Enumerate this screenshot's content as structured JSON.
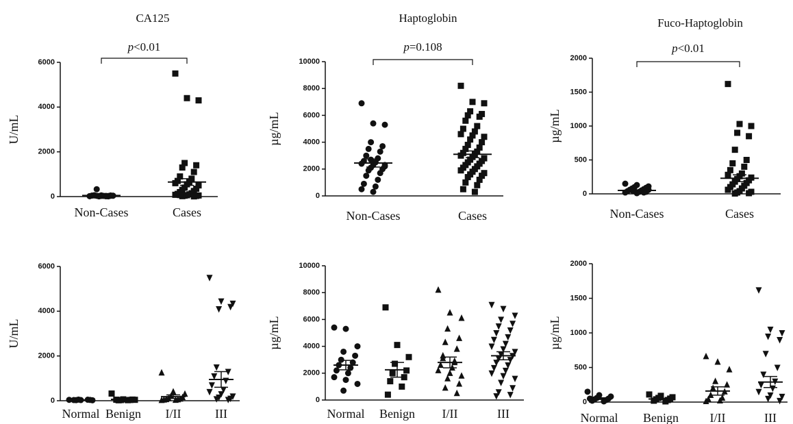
{
  "chart_data": [
    {
      "type": "dotplot",
      "title": "CA125",
      "ylabel": "U/mL",
      "annotation": "p<0.01",
      "ylim": [
        0,
        6000
      ],
      "yticks": [
        0,
        2000,
        4000,
        6000
      ],
      "series": [
        {
          "name": "Non-Cases",
          "marker": "circle",
          "color": "#111",
          "values": [
            20,
            30,
            40,
            10,
            50,
            35,
            25,
            60,
            15,
            45,
            30,
            20,
            55,
            40,
            25,
            35,
            330,
            10,
            50,
            30
          ],
          "mean": 50,
          "sem": 15
        },
        {
          "name": "Cases",
          "marker": "square",
          "color": "#111",
          "values": [
            5500,
            4400,
            4300,
            1500,
            1400,
            1300,
            1100,
            900,
            800,
            700,
            650,
            600,
            550,
            500,
            400,
            350,
            300,
            250,
            200,
            150,
            120,
            100,
            80,
            60,
            50,
            40,
            30,
            20,
            10,
            70
          ],
          "mean": 650,
          "sem": 150
        }
      ]
    },
    {
      "type": "dotplot",
      "title": "Haptoglobin",
      "ylabel": "µg/mL",
      "annotation": "p=0.108",
      "ylim": [
        0,
        10000
      ],
      "yticks": [
        0,
        2000,
        4000,
        6000,
        8000,
        10000
      ],
      "series": [
        {
          "name": "Non-Cases",
          "marker": "circle",
          "color": "#111",
          "values": [
            6900,
            5400,
            5300,
            4000,
            3700,
            3500,
            3300,
            3000,
            2800,
            2600,
            2500,
            2400,
            2300,
            2200,
            2100,
            2000,
            1900,
            1700,
            1500,
            1200,
            900,
            700,
            500,
            300,
            2300,
            2700
          ],
          "mean": 2450,
          "sem": 300
        },
        {
          "name": "Cases",
          "marker": "square",
          "color": "#111",
          "values": [
            8200,
            7000,
            6900,
            6300,
            6100,
            6000,
            5900,
            5600,
            5200,
            5000,
            4800,
            4600,
            4500,
            4400,
            4200,
            4000,
            3800,
            3600,
            3500,
            3300,
            3200,
            3100,
            3000,
            2900,
            2800,
            2700,
            2600,
            2500,
            2400,
            2300,
            2200,
            2100,
            2000,
            1900,
            1800,
            1700,
            1600,
            1500,
            1400,
            1200,
            1000,
            800,
            500,
            300
          ],
          "mean": 3100,
          "sem": 250
        }
      ]
    },
    {
      "type": "dotplot",
      "title": "Fuco-Haptoglobin",
      "ylabel": "µg/mL",
      "annotation": "p<0.01",
      "ylim": [
        0,
        2000
      ],
      "yticks": [
        0,
        500,
        1000,
        1500,
        2000
      ],
      "series": [
        {
          "name": "Non-Cases",
          "marker": "circle",
          "color": "#111",
          "values": [
            150,
            130,
            110,
            100,
            90,
            80,
            70,
            60,
            50,
            40,
            30,
            20,
            10,
            60,
            40,
            30,
            50,
            20
          ],
          "mean": 50,
          "sem": 8
        },
        {
          "name": "Cases",
          "marker": "square",
          "color": "#111",
          "values": [
            1620,
            1030,
            1000,
            900,
            850,
            650,
            500,
            450,
            400,
            350,
            300,
            280,
            260,
            240,
            220,
            200,
            180,
            160,
            140,
            120,
            100,
            80,
            60,
            40,
            30,
            20,
            10,
            5
          ],
          "mean": 230,
          "sem": 50
        }
      ]
    },
    {
      "type": "dotplot",
      "ylabel": "U/mL",
      "ylim": [
        0,
        6000
      ],
      "yticks": [
        0,
        2000,
        4000,
        6000
      ],
      "series": [
        {
          "name": "Normal",
          "marker": "circle",
          "color": "#111",
          "values": [
            40,
            30,
            20,
            50,
            35,
            25,
            45,
            30
          ],
          "mean": 35,
          "sem": 5
        },
        {
          "name": "Benign",
          "marker": "square",
          "color": "#111",
          "values": [
            320,
            60,
            40,
            30,
            50,
            20,
            35,
            45,
            25
          ],
          "mean": 60,
          "sem": 30
        },
        {
          "name": "I/II",
          "marker": "triangle-up",
          "color": "#111",
          "values": [
            1250,
            400,
            300,
            200,
            150,
            100,
            80,
            60,
            50,
            40,
            30,
            20
          ],
          "mean": 180,
          "sem": 80
        },
        {
          "name": "III",
          "marker": "triangle-down",
          "color": "#111",
          "values": [
            5500,
            4450,
            4350,
            4100,
            4200,
            1500,
            1300,
            1100,
            900,
            700,
            500,
            400,
            300,
            200,
            150,
            100,
            80,
            50
          ],
          "mean": 950,
          "sem": 350
        }
      ]
    },
    {
      "type": "dotplot",
      "ylabel": "µg/mL",
      "ylim": [
        0,
        10000
      ],
      "yticks": [
        0,
        2000,
        4000,
        6000,
        8000,
        10000
      ],
      "series": [
        {
          "name": "Normal",
          "marker": "circle",
          "color": "#111",
          "values": [
            5400,
            5300,
            4000,
            3600,
            3300,
            3000,
            2800,
            2600,
            2400,
            2200,
            2000,
            1700,
            1500,
            1200,
            700
          ],
          "mean": 2600,
          "sem": 350
        },
        {
          "name": "Benign",
          "marker": "square",
          "color": "#111",
          "values": [
            6900,
            4100,
            3200,
            2700,
            2200,
            2000,
            1700,
            1400,
            1000,
            400
          ],
          "mean": 2250,
          "sem": 550
        },
        {
          "name": "I/II",
          "marker": "triangle-up",
          "color": "#111",
          "values": [
            8200,
            6500,
            6100,
            5300,
            4600,
            4300,
            3800,
            3100,
            2800,
            2600,
            2400,
            2200,
            2000,
            1800,
            1600,
            1200,
            900,
            500,
            3300,
            2900
          ],
          "mean": 2800,
          "sem": 400
        },
        {
          "name": "III",
          "marker": "triangle-down",
          "color": "#111",
          "values": [
            7100,
            6800,
            6300,
            6000,
            5700,
            5500,
            5200,
            5000,
            4700,
            4500,
            4200,
            4000,
            3800,
            3600,
            3400,
            3300,
            3100,
            3000,
            2800,
            2600,
            2400,
            2200,
            2000,
            1800,
            1600,
            1300,
            900,
            600,
            400,
            300
          ],
          "mean": 3300,
          "sem": 300
        }
      ]
    },
    {
      "type": "dotplot",
      "ylabel": "µg/mL",
      "ylim": [
        0,
        2000
      ],
      "yticks": [
        0,
        500,
        1000,
        1500,
        2000
      ],
      "series": [
        {
          "name": "Normal",
          "marker": "circle",
          "color": "#111",
          "values": [
            150,
            100,
            80,
            60,
            50,
            40,
            30,
            20,
            10,
            50
          ],
          "mean": 50,
          "sem": 12
        },
        {
          "name": "Benign",
          "marker": "square",
          "color": "#111",
          "values": [
            110,
            90,
            70,
            60,
            50,
            40,
            30,
            20,
            10
          ],
          "mean": 45,
          "sem": 10
        },
        {
          "name": "I/II",
          "marker": "triangle-up",
          "color": "#111",
          "values": [
            660,
            580,
            470,
            300,
            250,
            200,
            150,
            100,
            60,
            40,
            20,
            10
          ],
          "mean": 160,
          "sem": 60
        },
        {
          "name": "III",
          "marker": "triangle-down",
          "color": "#111",
          "values": [
            1620,
            1050,
            1000,
            950,
            900,
            700,
            500,
            400,
            300,
            250,
            200,
            150,
            100,
            80,
            50,
            20
          ],
          "mean": 290,
          "sem": 80
        }
      ]
    }
  ]
}
